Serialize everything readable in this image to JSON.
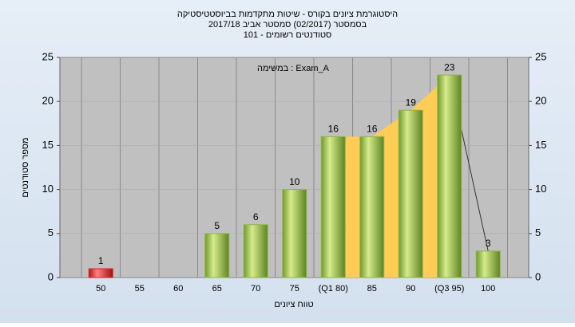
{
  "chart_data": {
    "type": "bar",
    "title": [
      "היסטוגרמת ציונים בקורס - שיטות מתקדמות בביוסטטיסטיקה",
      "בסמסטר  (02/2017)  סמסטר אביב 2017/18",
      "סטודנטים רשומים - 101"
    ],
    "annotation": "במשימה : Exam_A",
    "x_label": "טווח ציונים",
    "y_label": "מספר סטודנטים",
    "categories": [
      "50",
      "55",
      "60",
      "65",
      "70",
      "75",
      "(Q1 80)",
      "85",
      "90",
      "(Q3 95)",
      "100"
    ],
    "values": [
      1,
      null,
      null,
      5,
      6,
      10,
      16,
      16,
      19,
      23,
      3
    ],
    "colors": [
      "#d42a2a",
      null,
      null,
      "#8fb446",
      "#8fb446",
      "#8fb446",
      "#8fb446",
      "#8fb446",
      "#8fb446",
      "#8fb446",
      "#8fb446"
    ],
    "ylim": [
      0,
      25
    ],
    "yticks": [
      0,
      5,
      10,
      15,
      20,
      25
    ],
    "y2lim": [
      0,
      25
    ],
    "y2ticks": [
      0,
      5,
      10,
      15,
      20,
      25
    ],
    "grid": true
  }
}
